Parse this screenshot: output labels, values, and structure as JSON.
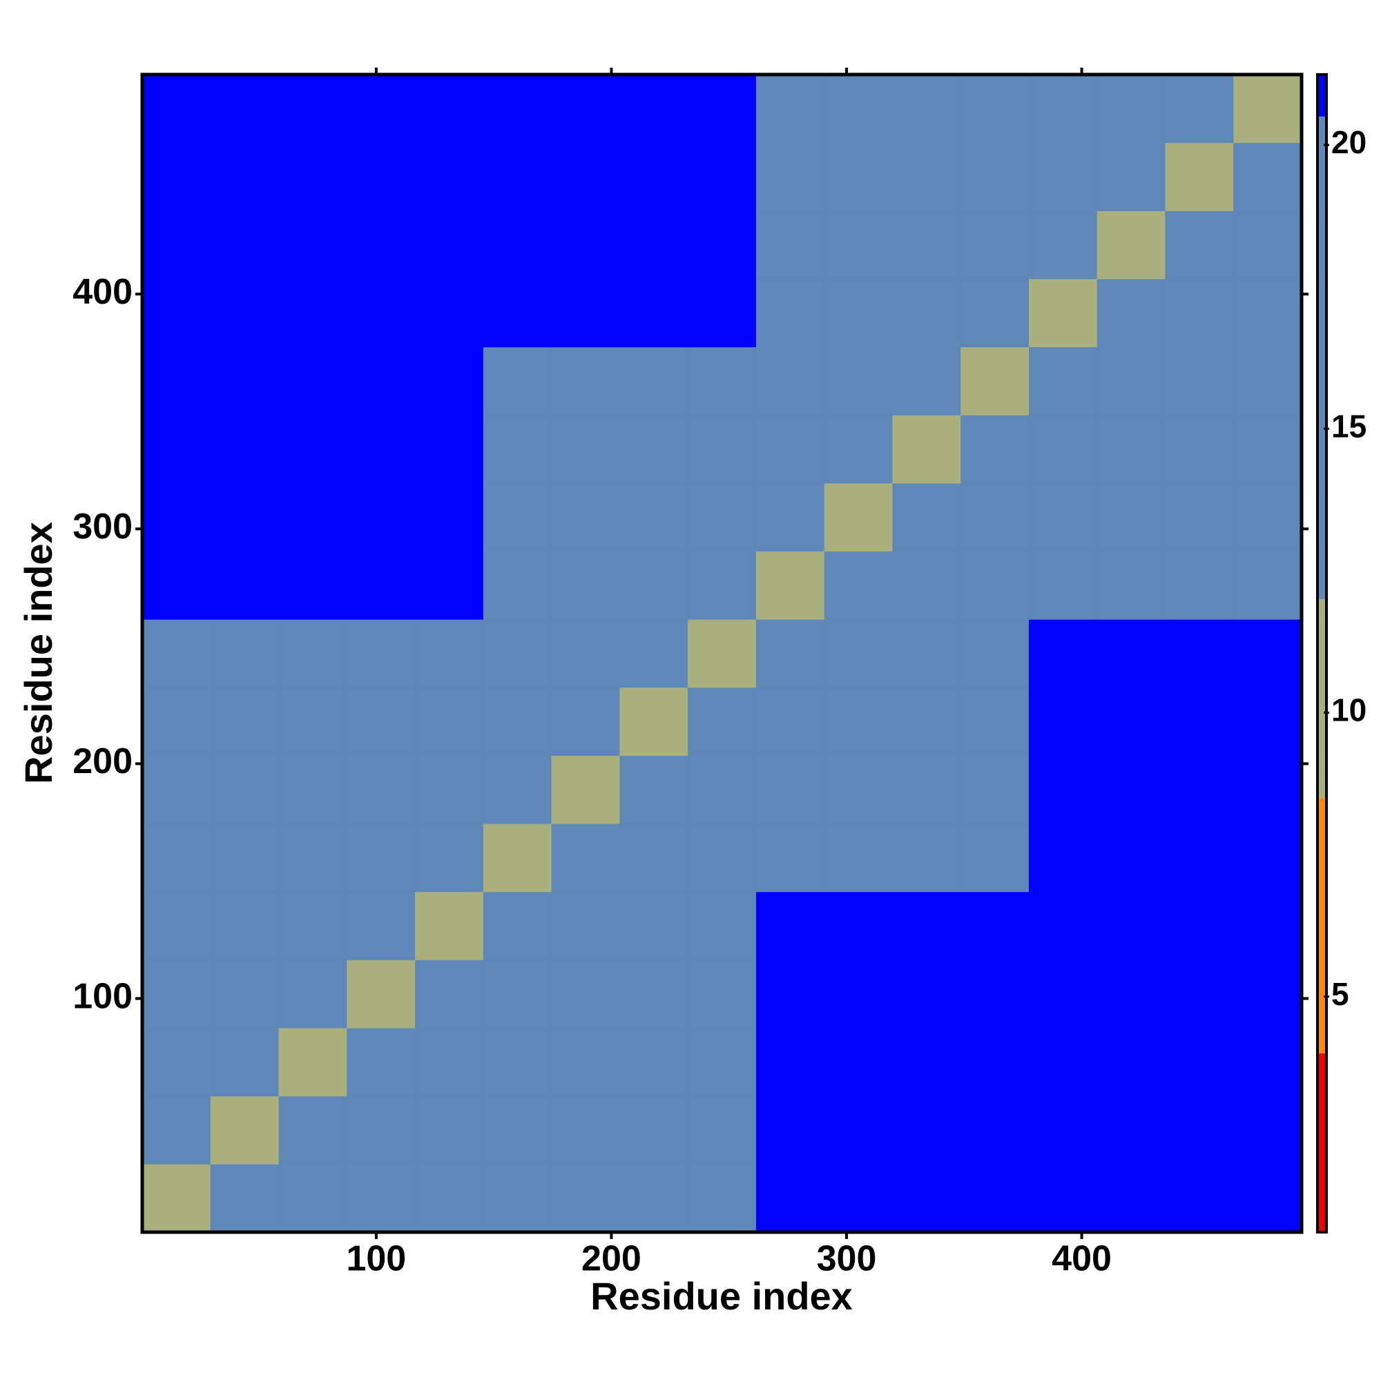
{
  "chart_data": {
    "type": "heatmap",
    "x_label": "Residue index",
    "y_label": "Residue index",
    "xlim": [
      0.5,
      493.5
    ],
    "ylim": [
      0.5,
      493.5
    ],
    "xticks": [
      100,
      200,
      300,
      400
    ],
    "yticks": [
      100,
      200,
      300,
      400
    ],
    "bins": [
      0.5,
      29.5,
      58.5,
      87.5,
      116.5,
      145.5,
      174.5,
      203.5,
      232.5,
      261.5,
      290.5,
      319.5,
      348.5,
      377.5,
      406.5,
      435.5,
      464.5,
      493.5
    ],
    "matrix": [
      [
        10,
        15,
        15,
        15,
        15,
        19,
        19,
        19,
        19,
        21,
        21,
        21,
        21,
        21,
        21,
        21,
        21
      ],
      [
        15,
        10,
        15,
        15,
        15,
        19,
        19,
        19,
        19,
        21,
        21,
        21,
        21,
        21,
        21,
        21,
        21
      ],
      [
        15,
        15,
        10,
        15,
        15,
        19,
        19,
        19,
        19,
        21,
        21,
        21,
        21,
        21,
        21,
        21,
        21
      ],
      [
        15,
        15,
        15,
        10,
        15,
        19,
        19,
        19,
        19,
        21,
        21,
        21,
        21,
        21,
        21,
        21,
        21
      ],
      [
        15,
        15,
        15,
        15,
        10,
        19,
        19,
        19,
        19,
        21,
        21,
        21,
        21,
        21,
        21,
        21,
        21
      ],
      [
        19,
        19,
        19,
        19,
        19,
        10,
        15,
        15,
        15,
        19,
        19,
        19,
        19,
        21,
        21,
        21,
        21
      ],
      [
        19,
        19,
        19,
        19,
        19,
        15,
        10,
        15,
        15,
        19,
        19,
        19,
        19,
        21,
        21,
        21,
        21
      ],
      [
        19,
        19,
        19,
        19,
        19,
        15,
        15,
        10,
        15,
        19,
        19,
        19,
        19,
        21,
        21,
        21,
        21
      ],
      [
        19,
        19,
        19,
        19,
        19,
        15,
        15,
        15,
        10,
        19,
        19,
        19,
        19,
        21,
        21,
        21,
        21
      ],
      [
        21,
        21,
        21,
        21,
        21,
        19,
        19,
        19,
        19,
        10,
        15,
        15,
        15,
        19,
        19,
        19,
        19
      ],
      [
        21,
        21,
        21,
        21,
        21,
        19,
        19,
        19,
        19,
        15,
        10,
        15,
        15,
        19,
        19,
        19,
        19
      ],
      [
        21,
        21,
        21,
        21,
        21,
        19,
        19,
        19,
        19,
        15,
        15,
        10,
        15,
        19,
        19,
        19,
        19
      ],
      [
        21,
        21,
        21,
        21,
        21,
        19,
        19,
        19,
        19,
        15,
        15,
        15,
        10,
        19,
        19,
        19,
        19
      ],
      [
        21,
        21,
        21,
        21,
        21,
        21,
        21,
        21,
        21,
        19,
        19,
        19,
        19,
        10,
        15,
        15,
        15
      ],
      [
        21,
        21,
        21,
        21,
        21,
        21,
        21,
        21,
        21,
        19,
        19,
        19,
        19,
        15,
        10,
        15,
        15
      ],
      [
        21,
        21,
        21,
        21,
        21,
        21,
        21,
        21,
        21,
        19,
        19,
        19,
        19,
        15,
        15,
        10,
        15
      ],
      [
        21,
        21,
        21,
        21,
        21,
        21,
        21,
        21,
        21,
        19,
        19,
        19,
        19,
        15,
        15,
        15,
        10
      ]
    ],
    "colorbar_lim": [
      0.85,
      21.24
    ],
    "colorbar_ticks": [
      5,
      10,
      15,
      20
    ],
    "bands": [
      {
        "from": 0.85,
        "to": 4,
        "color": "#ee0000"
      },
      {
        "from": 4,
        "to": 8.5,
        "color": "#ff8c00"
      },
      {
        "from": 8.5,
        "to": 12,
        "color": "#a9b07e"
      },
      {
        "from": 12,
        "to": 20.5,
        "color": "#5f87b8"
      },
      {
        "from": 20.5,
        "to": 21.24,
        "color": "#0000ff"
      }
    ]
  }
}
